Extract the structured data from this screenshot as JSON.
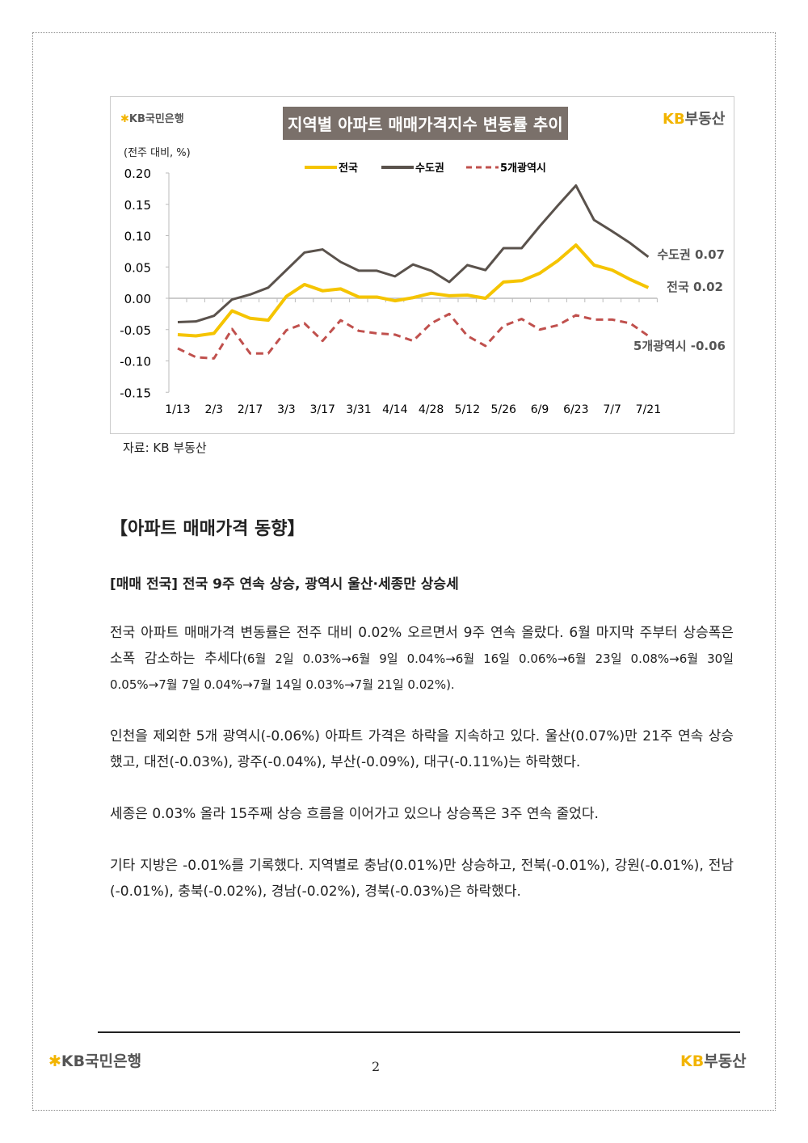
{
  "chart_title": "지역별 아파트 매매가격지수 변동률 추이",
  "logo_bank": "KB국민은행",
  "logo_realestate": {
    "kb": "KB",
    "text": "부동산"
  },
  "unit": "(전주 대비, %)",
  "source": "자료: KB 부동산",
  "chart_data": {
    "type": "line",
    "ylabel": "(전주 대비, %)",
    "ylim": [
      -0.15,
      0.2
    ],
    "yticks": [
      "0.20",
      "0.15",
      "0.10",
      "0.05",
      "0.00",
      "-0.05",
      "-0.10",
      "-0.15"
    ],
    "x": [
      "1/13",
      "1/20",
      "2/3",
      "2/10",
      "2/17",
      "2/24",
      "3/3",
      "3/10",
      "3/17",
      "3/24",
      "3/31",
      "4/7",
      "4/14",
      "4/21",
      "4/28",
      "5/5",
      "5/12",
      "5/19",
      "5/26",
      "6/2",
      "6/9",
      "6/16",
      "6/23",
      "6/30",
      "7/7",
      "7/14",
      "7/21"
    ],
    "xtick_labels": [
      "1/13",
      "2/3",
      "2/17",
      "3/3",
      "3/17",
      "3/31",
      "4/14",
      "4/28",
      "5/12",
      "5/26",
      "6/9",
      "6/23",
      "7/7",
      "7/21"
    ],
    "legend": "top",
    "series": [
      {
        "name": "전국",
        "color": "#f5c400",
        "style": "solid",
        "end_label": "전국 0.02",
        "values": [
          -0.058,
          -0.06,
          -0.056,
          -0.02,
          -0.032,
          -0.035,
          0.003,
          0.022,
          0.012,
          0.015,
          0.002,
          0.002,
          -0.004,
          0.001,
          0.008,
          0.004,
          0.005,
          0.0,
          0.026,
          0.028,
          0.04,
          0.06,
          0.085,
          0.053,
          0.045,
          0.03,
          0.017
        ]
      },
      {
        "name": "수도권",
        "color": "#5a524c",
        "style": "solid",
        "end_label": "수도권 0.07",
        "values": [
          -0.038,
          -0.037,
          -0.028,
          -0.002,
          0.006,
          0.017,
          0.045,
          0.073,
          0.078,
          0.058,
          0.044,
          0.044,
          0.035,
          0.054,
          0.044,
          0.026,
          0.053,
          0.045,
          0.08,
          0.08,
          0.115,
          0.148,
          0.18,
          0.125,
          0.107,
          0.088,
          0.066
        ]
      },
      {
        "name": "5개광역시",
        "color": "#c0504d",
        "style": "dashed",
        "end_label": "5개광역시 -0.06",
        "values": [
          -0.08,
          -0.094,
          -0.096,
          -0.049,
          -0.088,
          -0.088,
          -0.051,
          -0.04,
          -0.068,
          -0.035,
          -0.052,
          -0.056,
          -0.058,
          -0.068,
          -0.04,
          -0.025,
          -0.06,
          -0.076,
          -0.044,
          -0.033,
          -0.05,
          -0.043,
          -0.027,
          -0.034,
          -0.034,
          -0.04,
          -0.06
        ]
      }
    ]
  },
  "section_title": "【아파트 매매가격 동향】",
  "subheading": "[매매 전국] 전국 9주 연속 상승, 광역시 울산·세종만 상승세",
  "paragraphs": [
    {
      "main": "전국 아파트 매매가격 변동률은 전주 대비 0.02% 오르면서 9주 연속 올랐다. 6월 마지막 주부터 상승폭은 소폭 감소하는 추세다",
      "small": "(6월 2일 0.03%→6월 9일 0.04%→6월 16일 0.06%→6월 23일 0.08%→6월 30일 0.05%→7월 7일 0.04%→7월 14일 0.03%→7월 21일 0.02%)."
    },
    {
      "main": "인천을 제외한 5개 광역시(-0.06%) 아파트 가격은 하락을 지속하고 있다. 울산(0.07%)만 21주 연속 상승했고, 대전(-0.03%), 광주(-0.04%), 부산(-0.09%), 대구(-0.11%)는 하락했다."
    },
    {
      "main": "세종은 0.03% 올라 15주째 상승 흐름을 이어가고 있으나 상승폭은 3주 연속 줄었다."
    },
    {
      "main": "기타 지방은 -0.01%를 기록했다. 지역별로 충남(0.01%)만 상승하고, 전북(-0.01%), 강원(-0.01%), 전남(-0.01%), 충북(-0.02%), 경남(-0.02%), 경북(-0.03%)은 하락했다."
    }
  ],
  "page_number": "2"
}
